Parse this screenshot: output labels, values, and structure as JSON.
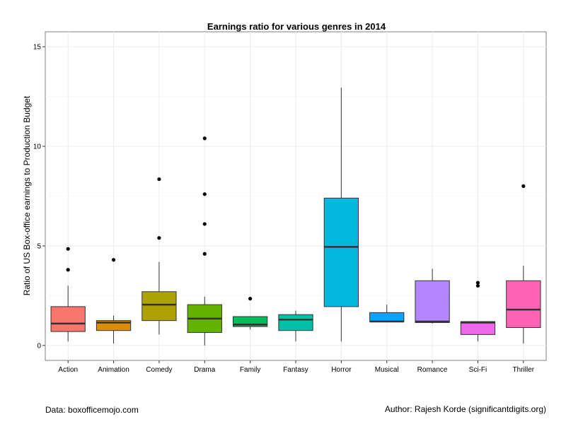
{
  "chart_data": {
    "type": "boxplot",
    "title": "Earnings ratio for various genres in 2014",
    "xlabel": "",
    "ylabel": "Ratio of US Box-office earnings to Production Budget",
    "ylim": [
      -0.75,
      15.75
    ],
    "yticks": [
      0,
      5,
      10,
      15
    ],
    "grid": true,
    "legend": "none",
    "categories": [
      "Action",
      "Animation",
      "Comedy",
      "Drama",
      "Family",
      "Fantasy",
      "Horror",
      "Musical",
      "Romance",
      "Sci-Fi",
      "Thriller"
    ],
    "boxes": [
      {
        "category": "Action",
        "color": "#F8766D",
        "min": 0.2,
        "q1": 0.7,
        "median": 1.1,
        "q3": 1.95,
        "max": 3.0,
        "outliers": [
          3.8,
          4.85
        ]
      },
      {
        "category": "Animation",
        "color": "#DB8E00",
        "min": 0.1,
        "q1": 0.75,
        "median": 1.15,
        "q3": 1.25,
        "max": 1.5,
        "outliers": [
          4.3
        ]
      },
      {
        "category": "Comedy",
        "color": "#AEA200",
        "min": 0.55,
        "q1": 1.25,
        "median": 2.05,
        "q3": 2.7,
        "max": 4.2,
        "outliers": [
          5.4,
          8.35
        ]
      },
      {
        "category": "Drama",
        "color": "#64B200",
        "min": 0.0,
        "q1": 0.65,
        "median": 1.35,
        "q3": 2.05,
        "max": 2.45,
        "outliers": [
          4.6,
          6.1,
          7.6,
          10.4
        ]
      },
      {
        "category": "Family",
        "color": "#00BD5C",
        "min": 0.8,
        "q1": 0.95,
        "median": 1.05,
        "q3": 1.45,
        "max": 1.45,
        "outliers": [
          2.35
        ]
      },
      {
        "category": "Fantasy",
        "color": "#00C1A7",
        "min": 0.2,
        "q1": 0.75,
        "median": 1.3,
        "q3": 1.55,
        "max": 1.75,
        "outliers": []
      },
      {
        "category": "Horror",
        "color": "#00BADE",
        "min": 0.2,
        "q1": 1.95,
        "median": 4.95,
        "q3": 7.4,
        "max": 12.95,
        "outliers": []
      },
      {
        "category": "Musical",
        "color": "#00A6FF",
        "min": 1.2,
        "q1": 1.2,
        "median": 1.2,
        "q3": 1.65,
        "max": 2.05,
        "outliers": []
      },
      {
        "category": "Romance",
        "color": "#B385FF",
        "min": 1.1,
        "q1": 1.15,
        "median": 1.2,
        "q3": 3.25,
        "max": 3.85,
        "outliers": []
      },
      {
        "category": "Sci-Fi",
        "color": "#EF67EB",
        "min": 0.2,
        "q1": 0.55,
        "median": 1.15,
        "q3": 1.2,
        "max": 1.2,
        "outliers": [
          3.0,
          3.15
        ]
      },
      {
        "category": "Thriller",
        "color": "#FF63B6",
        "min": 0.1,
        "q1": 0.9,
        "median": 1.8,
        "q3": 3.25,
        "max": 4.0,
        "outliers": [
          8.0
        ]
      }
    ]
  },
  "footer": {
    "source": "Data: boxofficemojo.com",
    "author": "Author: Rajesh Korde (significantdigits.org)"
  }
}
